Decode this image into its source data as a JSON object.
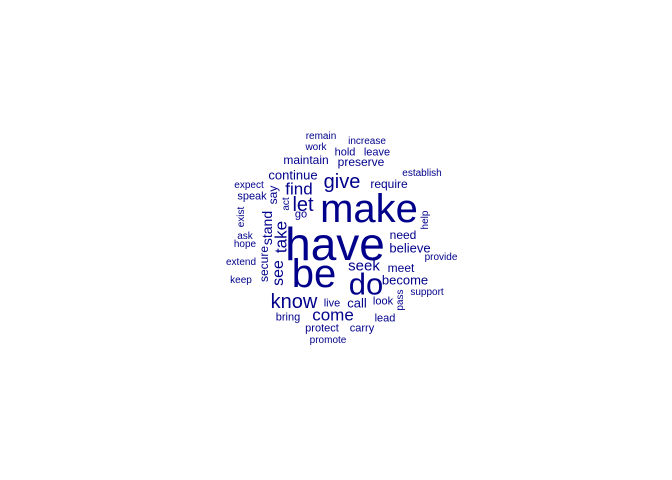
{
  "word_color": "#00008b",
  "background": "#ffffff",
  "words": [
    {
      "text": "have",
      "weight": 46
    },
    {
      "text": "make",
      "weight": 40
    },
    {
      "text": "be",
      "weight": 40
    },
    {
      "text": "do",
      "weight": 31
    },
    {
      "text": "give",
      "weight": 20
    },
    {
      "text": "know",
      "weight": 20
    },
    {
      "text": "let",
      "weight": 20
    },
    {
      "text": "come",
      "weight": 17
    },
    {
      "text": "find",
      "weight": 17
    },
    {
      "text": "take",
      "weight": 17
    },
    {
      "text": "see",
      "weight": 16
    },
    {
      "text": "seek",
      "weight": 15
    },
    {
      "text": "stand",
      "weight": 14
    },
    {
      "text": "believe",
      "weight": 13
    },
    {
      "text": "call",
      "weight": 13
    },
    {
      "text": "continue",
      "weight": 13
    },
    {
      "text": "become",
      "weight": 13
    },
    {
      "text": "secure",
      "weight": 12
    },
    {
      "text": "maintain",
      "weight": 12
    },
    {
      "text": "preserve",
      "weight": 12
    },
    {
      "text": "need",
      "weight": 12
    },
    {
      "text": "require",
      "weight": 12
    },
    {
      "text": "meet",
      "weight": 12
    },
    {
      "text": "say",
      "weight": 12
    },
    {
      "text": "bring",
      "weight": 11
    },
    {
      "text": "speak",
      "weight": 11
    },
    {
      "text": "go",
      "weight": 11
    },
    {
      "text": "hold",
      "weight": 11
    },
    {
      "text": "leave",
      "weight": 11
    },
    {
      "text": "protect",
      "weight": 11
    },
    {
      "text": "carry",
      "weight": 11
    },
    {
      "text": "live",
      "weight": 11
    },
    {
      "text": "look",
      "weight": 11
    },
    {
      "text": "lead",
      "weight": 11
    },
    {
      "text": "ask",
      "weight": 10
    },
    {
      "text": "increase",
      "weight": 10
    },
    {
      "text": "remain",
      "weight": 10
    },
    {
      "text": "work",
      "weight": 10
    },
    {
      "text": "expect",
      "weight": 10
    },
    {
      "text": "hope",
      "weight": 10
    },
    {
      "text": "extend",
      "weight": 10
    },
    {
      "text": "keep",
      "weight": 10
    },
    {
      "text": "exist",
      "weight": 10
    },
    {
      "text": "act",
      "weight": 10
    },
    {
      "text": "establish",
      "weight": 10
    },
    {
      "text": "help",
      "weight": 10
    },
    {
      "text": "provide",
      "weight": 10
    },
    {
      "text": "support",
      "weight": 10
    },
    {
      "text": "pass",
      "weight": 10
    },
    {
      "text": "promote",
      "weight": 10
    }
  ]
}
